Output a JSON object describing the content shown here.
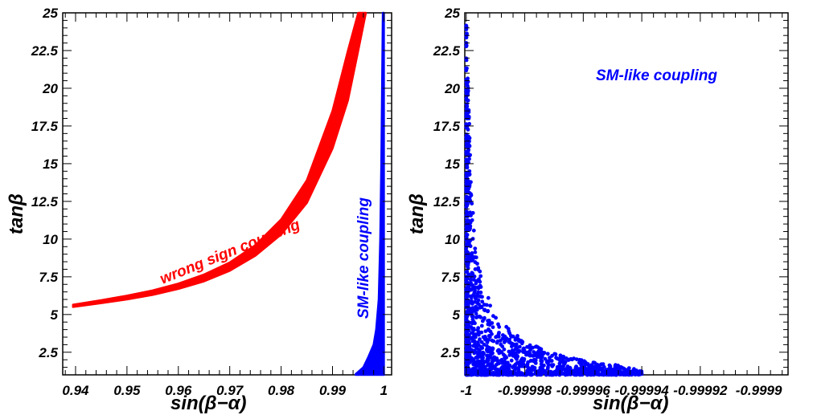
{
  "chart_data": [
    {
      "type": "scatter",
      "panel": "left",
      "xlabel": "sin(β−α)",
      "ylabel": "tanβ",
      "xlim": [
        0.9375,
        1.0015
      ],
      "ylim": [
        1.0,
        25.0
      ],
      "x_ticks": [
        0.94,
        0.95,
        0.96,
        0.97,
        0.98,
        0.99,
        1.0
      ],
      "x_tick_labels": [
        "0.94",
        "0.95",
        "0.96",
        "0.97",
        "0.98",
        "0.99",
        "1"
      ],
      "y_ticks": [
        2.5,
        5,
        7.5,
        10,
        12.5,
        15,
        17.5,
        20,
        22.5,
        25
      ],
      "y_tick_labels": [
        "2.5",
        "5",
        "7.5",
        "10",
        "12.5",
        "15",
        "17.5",
        "20",
        "22.5",
        "25"
      ],
      "grid": false,
      "annotations": [
        {
          "text": "wrong sign coupling",
          "color": "#ff0000"
        },
        {
          "text": "SM-like coupling",
          "color": "#0000ff"
        }
      ],
      "series": [
        {
          "color": "#ff0000",
          "style": "band",
          "x": [
            0.9395,
            0.945,
            0.95,
            0.955,
            0.96,
            0.965,
            0.97,
            0.975,
            0.98,
            0.985,
            0.99,
            0.993,
            0.995,
            0.9965
          ],
          "y_lower": [
            5.5,
            5.75,
            6.0,
            6.3,
            6.7,
            7.2,
            7.9,
            8.9,
            10.3,
            12.4,
            16.0,
            19.2,
            22.5,
            25.0
          ],
          "y_upper": [
            5.65,
            5.95,
            6.25,
            6.6,
            7.05,
            7.65,
            8.45,
            9.6,
            11.3,
            13.9,
            18.5,
            22.5,
            25.0,
            25.0
          ]
        },
        {
          "color": "#0000ff",
          "style": "band",
          "x": [
            0.9945,
            0.996,
            0.997,
            0.998,
            0.9985,
            0.999,
            0.9993,
            0.9995,
            0.9998,
            1.0
          ],
          "y_lower": [
            1.0,
            1.0,
            1.0,
            1.0,
            1.0,
            1.0,
            1.0,
            1.0,
            1.0,
            1.0
          ],
          "y_upper": [
            1.05,
            1.5,
            2.2,
            3.0,
            4.0,
            6.0,
            10.0,
            15.0,
            25.0,
            25.0
          ]
        }
      ]
    },
    {
      "type": "scatter",
      "panel": "right",
      "xlabel": "sin(β−α)",
      "ylabel": "tanβ",
      "xlim": [
        -1.0000005,
        -0.99989
      ],
      "ylim": [
        1.0,
        25.0
      ],
      "x_ticks": [
        -1.0,
        -0.99998,
        -0.99996,
        -0.99994,
        -0.99992,
        -0.9999
      ],
      "x_tick_labels": [
        "-1",
        "-0.99998",
        "-0.99996",
        "-0.99994",
        "-0.99992",
        "-0.9999"
      ],
      "y_ticks": [
        2.5,
        5,
        7.5,
        10,
        12.5,
        15,
        17.5,
        20,
        22.5,
        25
      ],
      "y_tick_labels": [
        "2.5",
        "5",
        "7.5",
        "10",
        "12.5",
        "15",
        "17.5",
        "20",
        "22.5",
        "25"
      ],
      "grid": false,
      "annotations": [
        {
          "text": "SM-like coupling",
          "color": "#0000ff"
        }
      ],
      "series": [
        {
          "color": "#0000ff",
          "style": "points",
          "envelope_x_offset_from_minus_one": [
            0.0,
            1e-06,
            2e-06,
            3e-06,
            5e-06,
            1e-05,
            1.5e-05,
            2e-05,
            3e-05,
            4e-05,
            5e-05,
            6e-05
          ],
          "envelope_y_max": [
            25.0,
            18.0,
            13.0,
            10.0,
            7.5,
            5.0,
            4.0,
            3.2,
            2.4,
            2.0,
            1.7,
            1.3
          ]
        }
      ]
    }
  ]
}
